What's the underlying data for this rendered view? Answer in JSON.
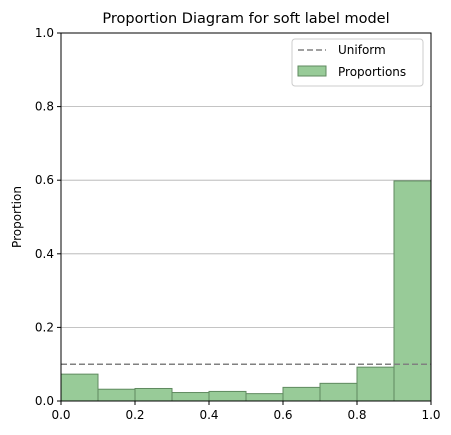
{
  "chart_data": {
    "type": "bar",
    "title": "Proportion Diagram for soft label model",
    "xlabel": "",
    "ylabel": "Proportion",
    "xlim": [
      0,
      1
    ],
    "ylim": [
      0,
      1
    ],
    "grid": "y",
    "legend_position": "top-right",
    "bin_edges": [
      0,
      0.1,
      0.2,
      0.3,
      0.4,
      0.5,
      0.6,
      0.7,
      0.8,
      0.9,
      1.0
    ],
    "x_ticks": [
      "0.0",
      "0.2",
      "0.4",
      "0.6",
      "0.8",
      "1.0"
    ],
    "y_ticks": [
      "0.0",
      "0.2",
      "0.4",
      "0.6",
      "0.8",
      "1.0"
    ],
    "series": [
      {
        "name": "Proportions",
        "type": "bar",
        "color": "#98cb98",
        "edge_color": "#5f8a5f",
        "values": [
          0.073,
          0.032,
          0.034,
          0.023,
          0.026,
          0.02,
          0.037,
          0.048,
          0.092,
          0.598
        ]
      },
      {
        "name": "Uniform",
        "type": "line",
        "style": "dashed",
        "color": "#808080",
        "value": 0.1
      }
    ],
    "legend": [
      "Uniform",
      "Proportions"
    ]
  }
}
